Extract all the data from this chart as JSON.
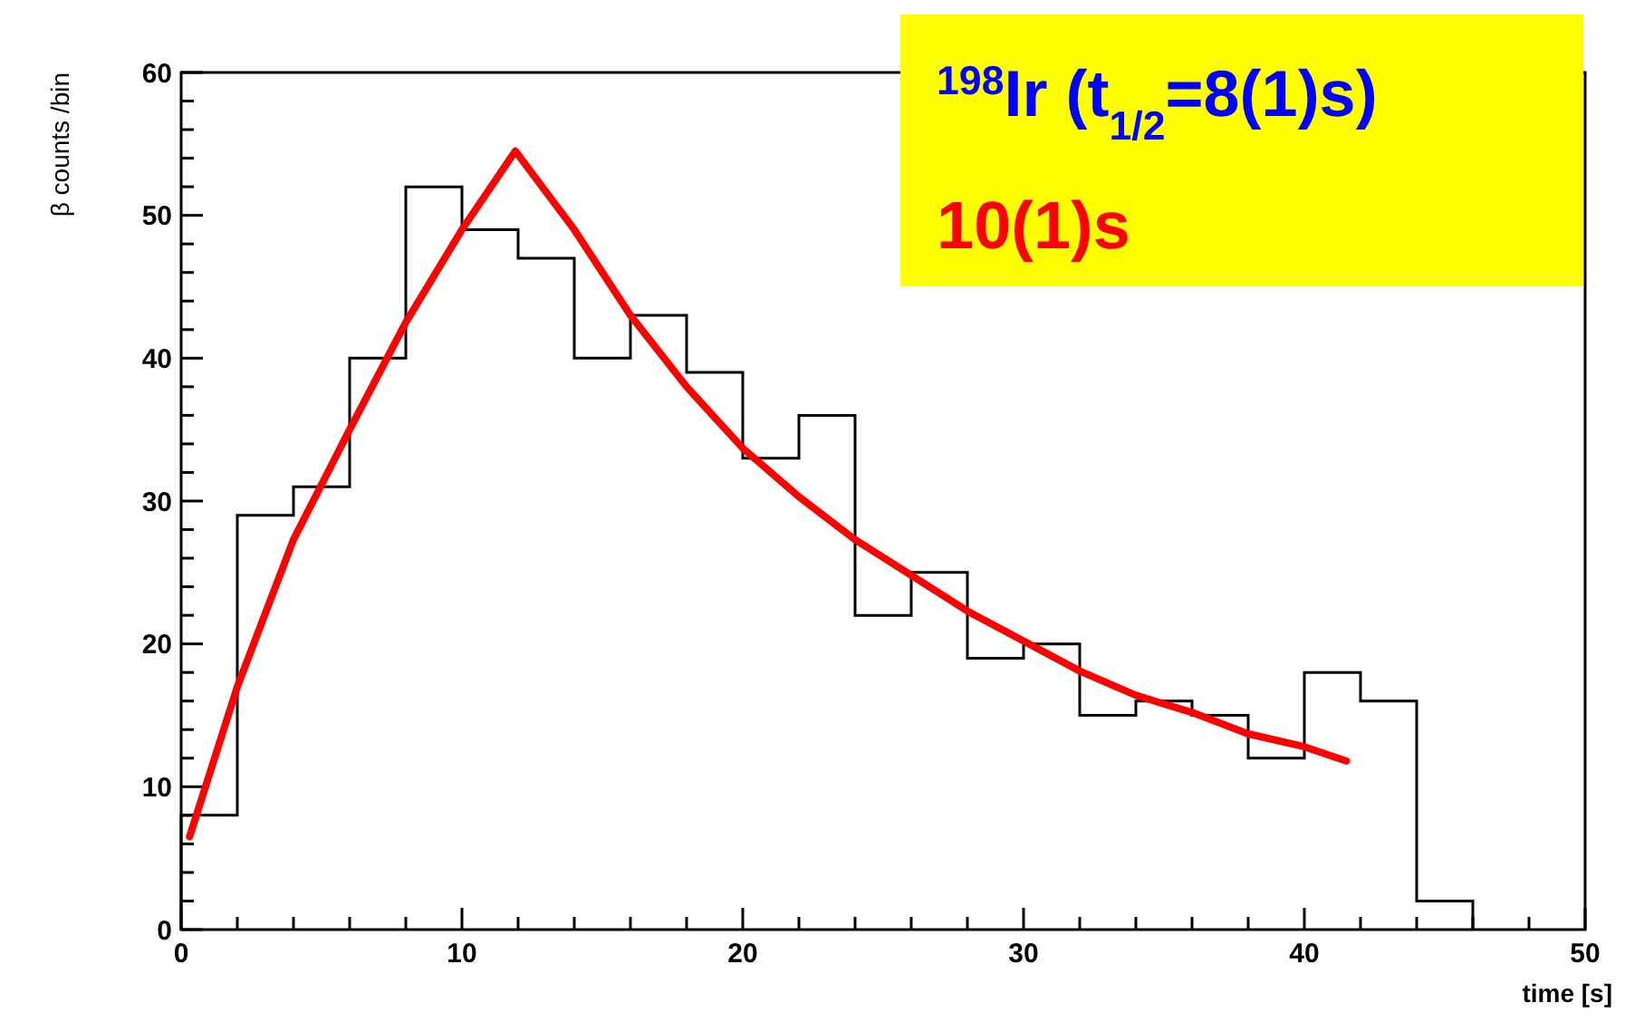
{
  "chart_data": {
    "type": "histogram",
    "xlabel": "time [s]",
    "ylabel": "β counts /bin",
    "annotations": [
      "$^{198}$Ir (t$_{1/2}$=8(1)s)",
      "10(1)s"
    ],
    "xlim": [
      0,
      50
    ],
    "ylim": [
      0,
      60
    ],
    "xticks": [
      0,
      10,
      20,
      30,
      40,
      50
    ],
    "yticks": [
      0,
      10,
      20,
      30,
      40,
      50,
      60
    ],
    "grid": false,
    "series": [
      {
        "color": "#000000",
        "bins": [
          0,
          2,
          4,
          6,
          8,
          10,
          12,
          14,
          16,
          18,
          20,
          22,
          24,
          26,
          28,
          30,
          32,
          34,
          36,
          38,
          40,
          42,
          44,
          46
        ],
        "values": [
          8,
          29,
          31,
          40,
          52,
          49,
          47,
          40,
          43,
          39,
          33,
          36,
          22,
          25,
          19,
          20,
          15,
          16,
          15,
          12,
          18,
          16,
          2
        ]
      },
      {
        "type": "line",
        "color": "#ff0000",
        "x": [
          0.3,
          2,
          4,
          6,
          8,
          10,
          11.9,
          14,
          16,
          18,
          20,
          22,
          24,
          26,
          28,
          30,
          32,
          34,
          36,
          38,
          40,
          41.5
        ],
        "values": [
          6.5,
          17,
          27.3,
          35,
          42.5,
          49,
          54.5,
          49,
          43,
          38,
          33.7,
          30.3,
          27.3,
          24.8,
          22.3,
          20.2,
          18.1,
          16.4,
          15.2,
          13.7,
          12.8,
          11.8
        ]
      }
    ]
  }
}
